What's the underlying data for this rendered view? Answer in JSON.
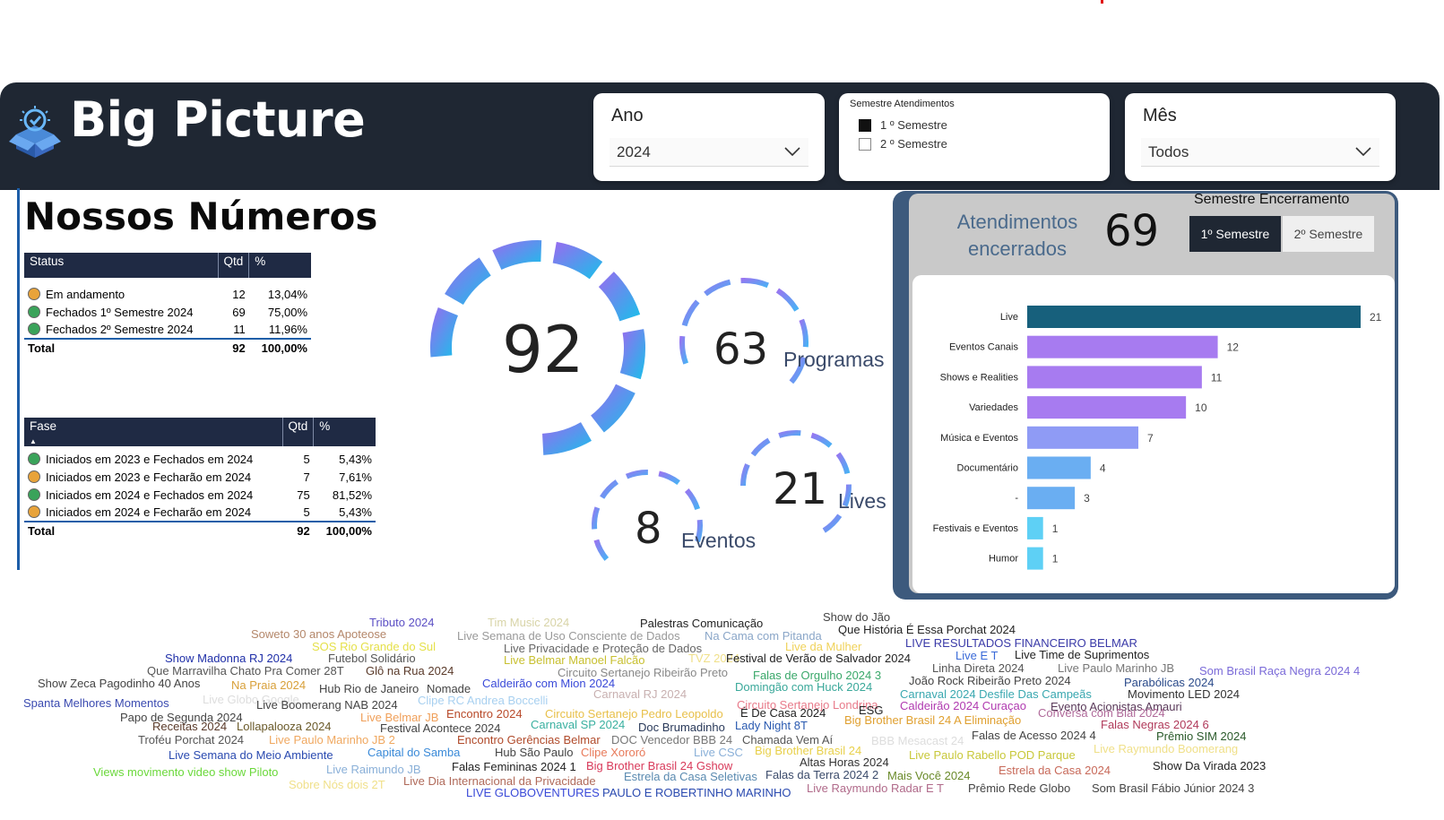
{
  "header": {
    "brand": "Big Picture",
    "ano": {
      "title": "Ano",
      "value": "2024"
    },
    "semestre_atendimentos": {
      "title": "Semestre Atendimentos",
      "options": [
        {
          "label": "1 º Semestre",
          "checked": true
        },
        {
          "label": "2 º Semestre",
          "checked": false
        }
      ]
    },
    "mes": {
      "title": "Mês",
      "value": "Todos"
    }
  },
  "nossos_numeros": {
    "title": "Nossos Números"
  },
  "status_table": {
    "headers": [
      "Status",
      "Qtd",
      "%"
    ],
    "rows": [
      {
        "label": "Em andamento",
        "qtd": "12",
        "pct": "13,04%",
        "dot": "#e8a33a"
      },
      {
        "label": "Fechados 1º Semestre 2024",
        "qtd": "69",
        "pct": "75,00%",
        "dot": "#3aa35a"
      },
      {
        "label": "Fechados 2º Semestre 2024",
        "qtd": "11",
        "pct": "11,96%",
        "dot": "#3aa35a"
      }
    ],
    "total": {
      "label": "Total",
      "qtd": "92",
      "pct": "100,00%"
    }
  },
  "fase_table": {
    "headers": [
      "Fase",
      "Qtd",
      "%"
    ],
    "rows": [
      {
        "label": "Iniciados em 2023 e Fechados em 2024",
        "qtd": "5",
        "pct": "5,43%",
        "dot": "#3aa35a"
      },
      {
        "label": "Iniciados em 2023 e Fecharão em 2024",
        "qtd": "7",
        "pct": "7,61%",
        "dot": "#e8a33a"
      },
      {
        "label": "Iniciados em 2024 e Fechados em 2024",
        "qtd": "75",
        "pct": "81,52%",
        "dot": "#3aa35a"
      },
      {
        "label": "Iniciados em 2024 e Fecharão em 2024",
        "qtd": "5",
        "pct": "5,43%",
        "dot": "#e8a33a"
      }
    ],
    "total": {
      "label": "Total",
      "qtd": "92",
      "pct": "100,00%"
    }
  },
  "kpis": {
    "total": {
      "value": "92"
    },
    "programas": {
      "value": "63",
      "label": "Programas"
    },
    "lives": {
      "value": "21",
      "label": "Lives"
    },
    "eventos": {
      "value": "8",
      "label": "Eventos"
    }
  },
  "encerrados": {
    "panel_title": "Semestre Encerramento",
    "label": "Atendimentos encerrados",
    "value": "69",
    "buttons": [
      {
        "label": "1º Semestre",
        "active": true
      },
      {
        "label": "2º Semestre",
        "active": false
      }
    ]
  },
  "chart_data": {
    "type": "bar",
    "orientation": "horizontal",
    "categories": [
      "Live",
      "Eventos Canais",
      "Shows e Realities",
      "Variedades",
      "Música e Eventos",
      "Documentário",
      "-",
      "Festivais e Eventos",
      "Humor"
    ],
    "values": [
      21,
      12,
      11,
      10,
      7,
      4,
      3,
      1,
      1
    ],
    "colors": [
      "#17607c",
      "#a77bf0",
      "#a77bf0",
      "#a77bf0",
      "#8f9bf5",
      "#6aaef2",
      "#6aaef2",
      "#5ed0f5",
      "#5ed0f5"
    ],
    "xlim": [
      0,
      21
    ],
    "data_labels": true
  },
  "word_cloud": [
    {
      "text": "Tributo 2024",
      "color": "#5b4fc4"
    },
    {
      "text": "Tim Music 2024",
      "color": "#d8d4a8"
    },
    {
      "text": "Palestras Comunicação",
      "color": "#222222"
    },
    {
      "text": "Show do Jão",
      "color": "#444444"
    },
    {
      "text": "Soweto 30 anos Apoteose",
      "color": "#b4876a"
    },
    {
      "text": "Live Semana de Uso Consciente de Dados",
      "color": "#999999"
    },
    {
      "text": "Na Cama com Pitanda",
      "color": "#8aa6c8"
    },
    {
      "text": "Que História É Essa Porchat 2024",
      "color": "#222222"
    },
    {
      "text": "SOS Rio Grande do Sul",
      "color": "#e5e04a"
    },
    {
      "text": "Live Privacidade e Proteção de Dados",
      "color": "#666666"
    },
    {
      "text": "Live da Mulher",
      "color": "#f0d25a"
    },
    {
      "text": "LIVE RESULTADOS FINANCEIRO BELMAR",
      "color": "#3a3aa8"
    },
    {
      "text": "Show Madonna RJ 2024",
      "color": "#1f2fa8"
    },
    {
      "text": "Futebol Solidário",
      "color": "#555555"
    },
    {
      "text": "Live Belmar Manoel Falcão",
      "color": "#c8c030"
    },
    {
      "text": "TVZ 2024",
      "color": "#f0e08a"
    },
    {
      "text": "Festival de Verão de Salvador 2024",
      "color": "#222222"
    },
    {
      "text": "Live E T",
      "color": "#3a6ad8"
    },
    {
      "text": "Live Time de Suprimentos",
      "color": "#222222"
    },
    {
      "text": "Que Marravilha Chato Pra Comer 28T",
      "color": "#555555"
    },
    {
      "text": "Glô na Rua 2024",
      "color": "#5a3a2a"
    },
    {
      "text": "Circuito Sertanejo Ribeirão Preto",
      "color": "#888888"
    },
    {
      "text": "Falas de Orgulho 2024 3",
      "color": "#3aa86a"
    },
    {
      "text": "Linha Direta 2024",
      "color": "#555555"
    },
    {
      "text": "Live Paulo Marinho JB",
      "color": "#777777"
    },
    {
      "text": "Som Brasil Raça Negra 2024 4",
      "color": "#7a6ad8"
    },
    {
      "text": "Show Zeca Pagodinho 40 Anos",
      "color": "#444444"
    },
    {
      "text": "Na Praia 2024",
      "color": "#d8a03a"
    },
    {
      "text": "Hub Rio de Janeiro",
      "color": "#444444"
    },
    {
      "text": "Nomade",
      "color": "#444444"
    },
    {
      "text": "Caldeirão com Mion 2024",
      "color": "#3a4ad8"
    },
    {
      "text": "Domingão com Huck 2024",
      "color": "#3aa89a"
    },
    {
      "text": "João Rock Ribeirão Preto 2024",
      "color": "#444444"
    },
    {
      "text": "Parabólicas 2024",
      "color": "#2a4a8a"
    },
    {
      "text": "Live Globo Google",
      "color": "#dddddd"
    },
    {
      "text": "Clipe RC Andrea Boccelli",
      "color": "#a8d0f0"
    },
    {
      "text": "Carnaval RJ 2024",
      "color": "#c8b0b0"
    },
    {
      "text": "Carnaval 2024 Desfile Das Campeãs",
      "color": "#3aa8b0"
    },
    {
      "text": "Movimento LED 2024",
      "color": "#333333"
    },
    {
      "text": "Spanta Melhores Momentos",
      "color": "#3a4ab0"
    },
    {
      "text": "Live Boomerang NAB 2024",
      "color": "#444444"
    },
    {
      "text": "Circuito Sertanejo Londrina",
      "color": "#e87a8a"
    },
    {
      "text": "Caldeirão 2024 Curaçao",
      "color": "#b03ab0"
    },
    {
      "text": "Evento Acionistas Amauri",
      "color": "#5a3a5a"
    },
    {
      "text": "Papo de Segunda 2024",
      "color": "#444444"
    },
    {
      "text": "Encontro 2024",
      "color": "#b84a2a"
    },
    {
      "text": "Circuito Sertanejo Pedro Leopoldo",
      "color": "#e8c04a"
    },
    {
      "text": "É De Casa 2024",
      "color": "#222222"
    },
    {
      "text": "ESG",
      "color": "#222222"
    },
    {
      "text": "Conversa com Bial 2024",
      "color": "#b06a9a"
    },
    {
      "text": "Live Belmar JB",
      "color": "#f0a05a"
    },
    {
      "text": "Big Brother Brasil 24 A Eliminação",
      "color": "#e0a030"
    },
    {
      "text": "Falas Negras 2024 6",
      "color": "#b03a5a"
    },
    {
      "text": "Receitas 2024",
      "color": "#5a3a2a"
    },
    {
      "text": "Lollapalooza 2024",
      "color": "#6a5a2a"
    },
    {
      "text": "Festival Acontece 2024",
      "color": "#444444"
    },
    {
      "text": "Carnaval SP 2024",
      "color": "#3ab0a0"
    },
    {
      "text": "Doc Brumadinho",
      "color": "#2a3a5a"
    },
    {
      "text": "Lady Night 8T",
      "color": "#2a5ab0"
    },
    {
      "text": "Falas de Acesso 2024 4",
      "color": "#444444"
    },
    {
      "text": "Troféu Porchat 2024",
      "color": "#555555"
    },
    {
      "text": "Live Paulo Marinho JB 2",
      "color": "#f0a860"
    },
    {
      "text": "Encontro Gerências Belmar",
      "color": "#b04a2a"
    },
    {
      "text": "DOC Vencedor BBB 24",
      "color": "#777777"
    },
    {
      "text": "Chamada Vem Aí",
      "color": "#555555"
    },
    {
      "text": "BBB Mesacast 24",
      "color": "#dddddd"
    },
    {
      "text": "Prêmio SIM 2024",
      "color": "#2a5a2a"
    },
    {
      "text": "Live Semana do Meio Ambiente",
      "color": "#2a4ab0"
    },
    {
      "text": "Capital do Samba",
      "color": "#3a8ad8"
    },
    {
      "text": "Hub São Paulo",
      "color": "#444444"
    },
    {
      "text": "Clipe Xororó",
      "color": "#e87a5a"
    },
    {
      "text": "Live CSC",
      "color": "#8ab0d8"
    },
    {
      "text": "Big Brother Brasil 24",
      "color": "#e8d04a"
    },
    {
      "text": "Live Paulo Rabello POD Parque",
      "color": "#c8c83a"
    },
    {
      "text": "Live Raymundo Boomerang",
      "color": "#f0e08a"
    },
    {
      "text": "Altas Horas 2024",
      "color": "#333333"
    },
    {
      "text": "Falas Femininas 2024 1",
      "color": "#222222"
    },
    {
      "text": "Big Brother Brasil 24 Gshow",
      "color": "#d83a5a"
    },
    {
      "text": "Views movimento video show Piloto",
      "color": "#6ad83a"
    },
    {
      "text": "Live Raimundo JB",
      "color": "#8ab0d8"
    },
    {
      "text": "Estrela da Casa Seletivas",
      "color": "#5a8ab0"
    },
    {
      "text": "Falas da Terra 2024 2",
      "color": "#3a4a6a"
    },
    {
      "text": "Mais Você 2024",
      "color": "#6a8a2a"
    },
    {
      "text": "Estrela da Casa 2024",
      "color": "#c86a5a"
    },
    {
      "text": "Show Da Virada 2023",
      "color": "#222222"
    },
    {
      "text": "Sobre Nós dois 2T",
      "color": "#f0e08a"
    },
    {
      "text": "Live Dia Internacional da Privacidade",
      "color": "#b06a5a"
    },
    {
      "text": "LIVE GLOBOVENTURES",
      "color": "#3a4ad8"
    },
    {
      "text": "PAULO E ROBERTINHO MARINHO",
      "color": "#2a4ab0"
    },
    {
      "text": "Live Raymundo Radar E T",
      "color": "#b06a8a"
    },
    {
      "text": "Prêmio Rede Globo",
      "color": "#444444"
    },
    {
      "text": "Som Brasil Fábio Júnior 2024 3",
      "color": "#444444"
    }
  ]
}
